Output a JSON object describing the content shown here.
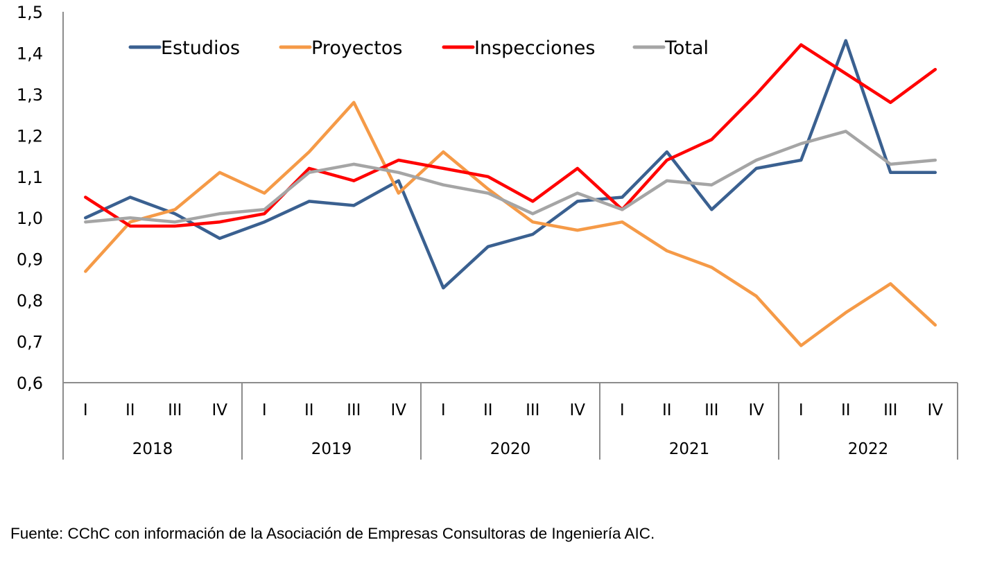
{
  "chart_data": {
    "type": "line",
    "title": "",
    "xlabel": "",
    "ylabel": "",
    "ylim": [
      0.6,
      1.5
    ],
    "y_ticks": [
      "0,6",
      "0,7",
      "0,8",
      "0,9",
      "1,0",
      "1,1",
      "1,2",
      "1,3",
      "1,4",
      "1,5"
    ],
    "y_tick_values": [
      0.6,
      0.7,
      0.8,
      0.9,
      1.0,
      1.1,
      1.2,
      1.3,
      1.4,
      1.5
    ],
    "grid": false,
    "legend_position": "top",
    "x_groups": [
      {
        "year": "2018",
        "quarters": [
          "I",
          "II",
          "III",
          "IV"
        ]
      },
      {
        "year": "2019",
        "quarters": [
          "I",
          "II",
          "III",
          "IV"
        ]
      },
      {
        "year": "2020",
        "quarters": [
          "I",
          "II",
          "III",
          "IV"
        ]
      },
      {
        "year": "2021",
        "quarters": [
          "I",
          "II",
          "III",
          "IV"
        ]
      },
      {
        "year": "2022",
        "quarters": [
          "I",
          "II",
          "III",
          "IV"
        ]
      }
    ],
    "series": [
      {
        "name": "Estudios",
        "color": "#3A6090",
        "values": [
          1.0,
          1.05,
          1.01,
          0.95,
          0.99,
          1.04,
          1.03,
          1.09,
          0.83,
          0.93,
          0.96,
          1.04,
          1.05,
          1.16,
          1.02,
          1.12,
          1.14,
          1.43,
          1.11,
          1.11
        ]
      },
      {
        "name": "Proyectos",
        "color": "#F59A47",
        "values": [
          0.87,
          0.99,
          1.02,
          1.11,
          1.06,
          1.16,
          1.28,
          1.06,
          1.16,
          1.07,
          0.99,
          0.97,
          0.99,
          0.92,
          0.88,
          0.81,
          0.69,
          0.77,
          0.84,
          0.74
        ]
      },
      {
        "name": "Inspecciones",
        "color": "#FF0000",
        "values": [
          1.05,
          0.98,
          0.98,
          0.99,
          1.01,
          1.12,
          1.09,
          1.14,
          1.12,
          1.1,
          1.04,
          1.12,
          1.02,
          1.14,
          1.19,
          1.3,
          1.42,
          1.35,
          1.28,
          1.36
        ]
      },
      {
        "name": "Total",
        "color": "#A5A5A5",
        "values": [
          0.99,
          1.0,
          0.99,
          1.01,
          1.02,
          1.11,
          1.13,
          1.11,
          1.08,
          1.06,
          1.01,
          1.06,
          1.02,
          1.09,
          1.08,
          1.14,
          1.18,
          1.21,
          1.13,
          1.14
        ]
      }
    ]
  },
  "source_note": "Fuente: CChC con información de la Asociación de Empresas Consultoras de Ingeniería AIC.",
  "colors": {
    "axis": "#8C8C8C"
  }
}
